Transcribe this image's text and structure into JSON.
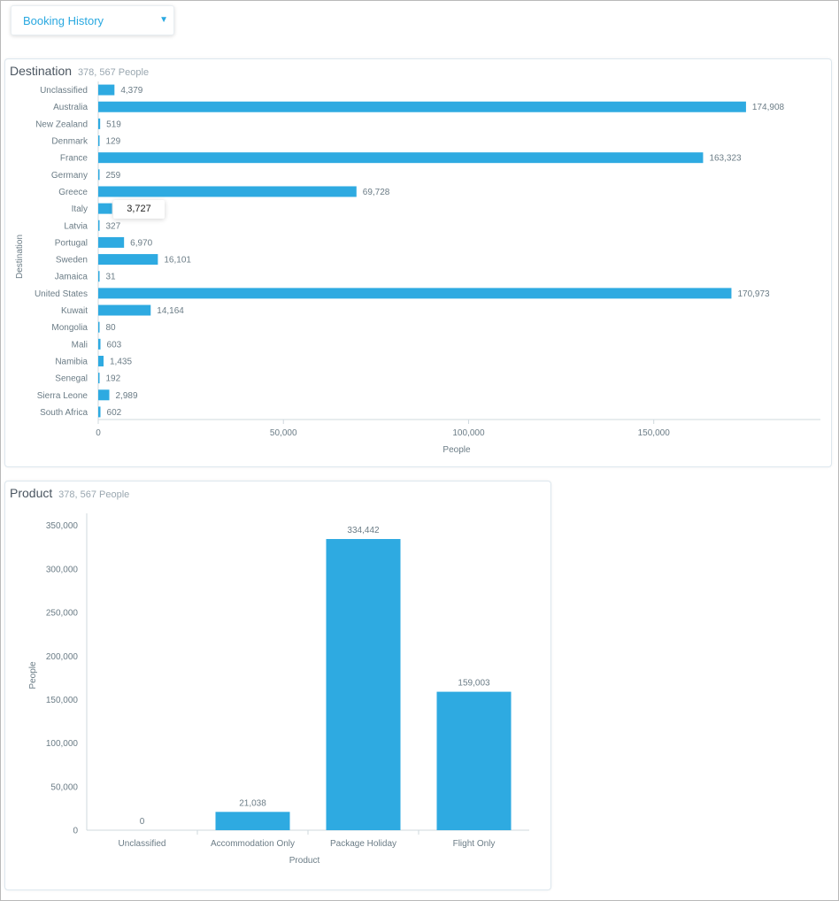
{
  "dropdown": {
    "label": "Booking History",
    "arrow_icon": "caret-down-icon"
  },
  "destination_panel": {
    "title": "Destination",
    "subtitle": "378, 567 People"
  },
  "product_panel": {
    "title": "Product",
    "subtitle": "378, 567 People"
  },
  "tooltip": {
    "value": "3,727"
  },
  "colors": {
    "bar": "#2eaae1",
    "accent": "#29a8e0",
    "axis_text": "#6b7c86"
  },
  "chart_data": [
    {
      "type": "bar",
      "orientation": "horizontal",
      "categories": [
        "Unclassified",
        "Australia",
        "New Zealand",
        "Denmark",
        "France",
        "Germany",
        "Greece",
        "Italy",
        "Latvia",
        "Portugal",
        "Sweden",
        "Jamaica",
        "United States",
        "Kuwait",
        "Mongolia",
        "Mali",
        "Namibia",
        "Senegal",
        "Sierra Leone",
        "South Africa"
      ],
      "values": [
        4379,
        174908,
        519,
        129,
        163323,
        259,
        69728,
        3727,
        327,
        6970,
        16101,
        31,
        170973,
        14164,
        80,
        603,
        1435,
        192,
        2989,
        602
      ],
      "value_labels": [
        "4,379",
        "174,908",
        "519",
        "129",
        "163,323",
        "259",
        "69,728",
        "",
        "327",
        "6,970",
        "16,101",
        "31",
        "170,973",
        "14,164",
        "80",
        "603",
        "1,435",
        "192",
        "2,989",
        "602"
      ],
      "xlabel": "People",
      "ylabel": "Destination",
      "xticks": [
        0,
        50000,
        100000,
        150000
      ],
      "xtick_labels": [
        "0",
        "50,000",
        "100,000",
        "150,000"
      ],
      "xlim": [
        0,
        195000
      ],
      "grid": false
    },
    {
      "type": "bar",
      "orientation": "vertical",
      "categories": [
        "Unclassified",
        "Accommodation Only",
        "Package Holiday",
        "Flight Only"
      ],
      "values": [
        0,
        21038,
        334442,
        159003
      ],
      "value_labels": [
        "0",
        "21,038",
        "334,442",
        "159,003"
      ],
      "xlabel": "Product",
      "ylabel": "People",
      "yticks": [
        0,
        50000,
        100000,
        150000,
        200000,
        250000,
        300000,
        350000
      ],
      "ytick_labels": [
        "0",
        "50,000",
        "100,000",
        "150,000",
        "200,000",
        "250,000",
        "300,000",
        "350,000"
      ],
      "ylim": [
        0,
        368000
      ],
      "grid": false
    }
  ]
}
